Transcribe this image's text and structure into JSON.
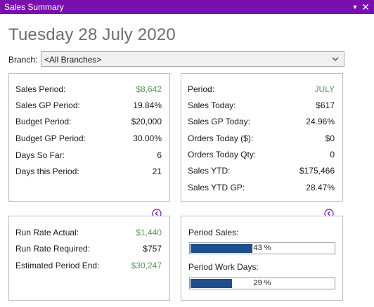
{
  "window": {
    "title": "Sales Summary"
  },
  "date_heading": "Tuesday 28 July 2020",
  "branch": {
    "label": "Branch:",
    "selected": "<All Branches>"
  },
  "period_panel": {
    "rows": [
      {
        "label": "Sales Period:",
        "value": "$8,642",
        "accent": true
      },
      {
        "label": "Sales GP Period:",
        "value": "19.84%"
      },
      {
        "label": "Budget Period:",
        "value": "$20,000"
      },
      {
        "label": "Budget GP Period:",
        "value": "30.00%"
      },
      {
        "label": "Days So Far:",
        "value": "6"
      },
      {
        "label": "Days this Period:",
        "value": "21"
      }
    ]
  },
  "today_panel": {
    "rows": [
      {
        "label": "Period:",
        "value": "JULY",
        "accent": true
      },
      {
        "label": "Sales Today:",
        "value": "$617"
      },
      {
        "label": "Sales GP Today:",
        "value": "24.96%"
      },
      {
        "label": "Orders Today ($):",
        "value": "$0"
      },
      {
        "label": "Orders Today Qty:",
        "value": "0"
      },
      {
        "label": "Sales YTD:",
        "value": "$175,466"
      },
      {
        "label": "Sales YTD GP:",
        "value": "28.47%"
      }
    ]
  },
  "runrate_panel": {
    "rows": [
      {
        "label": "Run Rate Actual:",
        "value": "$1,440",
        "accent": true
      },
      {
        "label": "Run Rate Required:",
        "value": "$757"
      },
      {
        "label": "Estimated Period End:",
        "value": "$30,247",
        "accent": true
      }
    ]
  },
  "progress_panel": {
    "period_sales": {
      "label": "Period Sales:",
      "percent": 43,
      "text": "43 %"
    },
    "period_work_days": {
      "label": "Period Work Days:",
      "percent": 29,
      "text": "29 %"
    }
  },
  "colors": {
    "accent_green": "#5b9a57",
    "title_bar": "#7a0fb0",
    "bar_fill": "#1f4e8c"
  },
  "icons": {
    "pin": "pin-icon",
    "close": "close-icon",
    "collapse": "chevron-left-circle-icon"
  }
}
